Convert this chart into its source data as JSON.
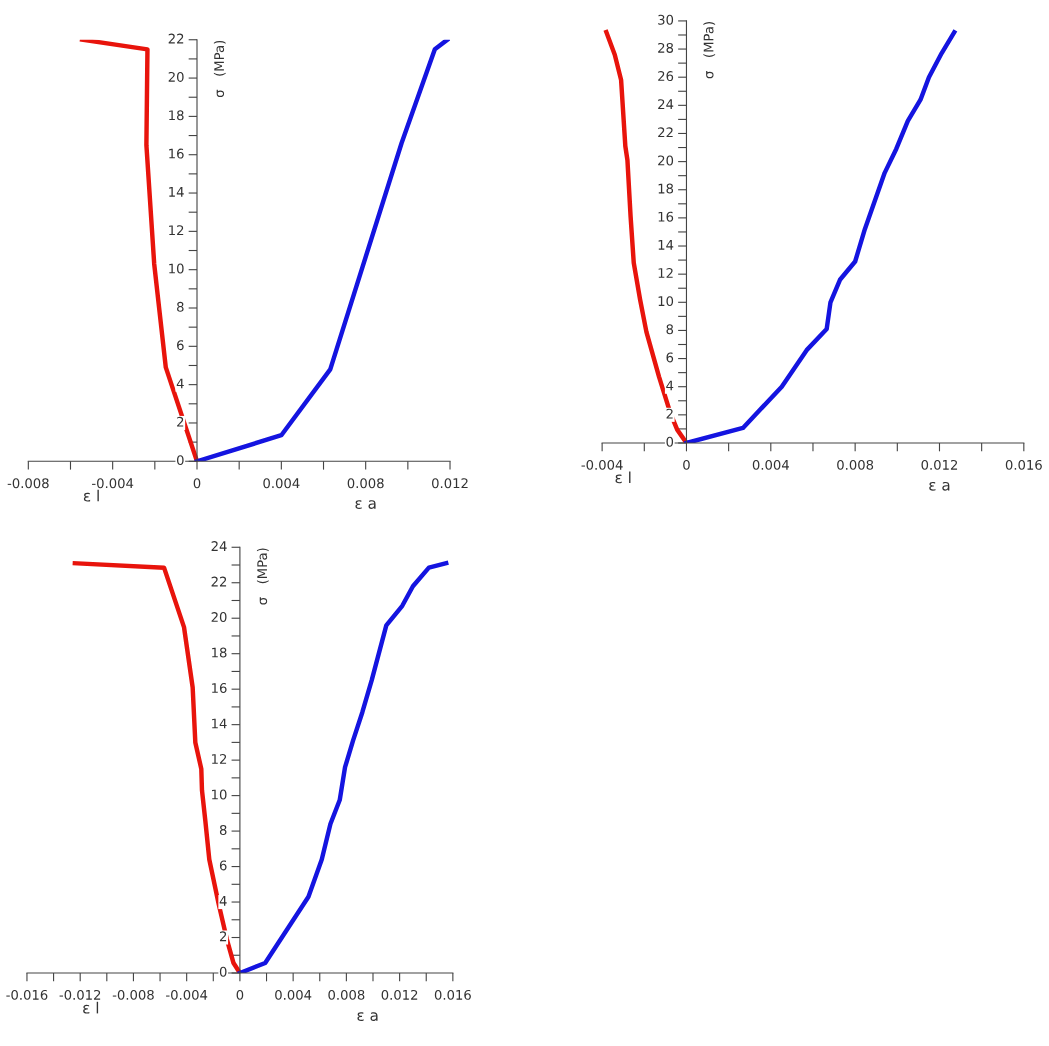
{
  "chart_data": [
    {
      "type": "line",
      "xlabel": "ε a",
      "ylabel": "σ   (MPa)",
      "annotations": [
        "ε l"
      ],
      "xlim": [
        -0.008,
        0.012
      ],
      "ylim": [
        0,
        22
      ],
      "xticks": [
        -0.008,
        {
          "value": -0.006,
          "label": null
        },
        -0.004,
        {
          "value": -0.002,
          "label": null
        },
        0,
        {
          "value": 0.002,
          "label": null
        },
        0.004,
        {
          "value": 0.006,
          "label": null
        },
        0.008,
        {
          "value": 0.01,
          "label": null
        },
        0.012
      ],
      "yticks": [
        0,
        {
          "value": 1,
          "label": null
        },
        2,
        {
          "value": 3,
          "label": null
        },
        4,
        {
          "value": 5,
          "label": null
        },
        6,
        {
          "value": 7,
          "label": null
        },
        8,
        {
          "value": 9,
          "label": null
        },
        10,
        {
          "value": 11,
          "label": null
        },
        12,
        {
          "value": 13,
          "label": null
        },
        14,
        {
          "value": 15,
          "label": null
        },
        16,
        {
          "value": 17,
          "label": null
        },
        18,
        {
          "value": 19,
          "label": null
        },
        20,
        {
          "value": 21,
          "label": null
        },
        22
      ],
      "grid": false,
      "legend": false,
      "series": [
        {
          "color": "#e8140c",
          "x": [
            0,
            -0.00148,
            -0.00203,
            -0.0024,
            -0.00235,
            -0.00545
          ],
          "values": [
            0,
            4.9,
            10.3,
            16.5,
            21.5,
            22
          ]
        },
        {
          "color": "#1414e0",
          "x": [
            0,
            0.004,
            0.00632,
            0.0097,
            0.01128,
            0.01187
          ],
          "values": [
            0,
            1.36,
            4.8,
            16.6,
            21.5,
            22
          ]
        }
      ]
    },
    {
      "type": "line",
      "xlabel": "ε a",
      "ylabel": "σ   (MPa)",
      "annotations": [
        "ε l"
      ],
      "xlim": [
        -0.004,
        0.016
      ],
      "ylim": [
        0,
        30
      ],
      "xticks": [
        -0.004,
        {
          "value": -0.002,
          "label": null
        },
        0,
        {
          "value": 0.002,
          "label": null
        },
        0.004,
        {
          "value": 0.006,
          "label": null
        },
        0.008,
        {
          "value": 0.01,
          "label": null
        },
        0.012,
        {
          "value": 0.014,
          "label": null
        },
        0.016
      ],
      "yticks": [
        0,
        {
          "value": 1,
          "label": null
        },
        2,
        {
          "value": 3,
          "label": null
        },
        4,
        {
          "value": 5,
          "label": null
        },
        6,
        {
          "value": 7,
          "label": null
        },
        8,
        {
          "value": 9,
          "label": null
        },
        10,
        {
          "value": 11,
          "label": null
        },
        12,
        {
          "value": 13,
          "label": null
        },
        14,
        {
          "value": 15,
          "label": null
        },
        16,
        {
          "value": 17,
          "label": null
        },
        18,
        {
          "value": 19,
          "label": null
        },
        20,
        {
          "value": 21,
          "label": null
        },
        22,
        {
          "value": 23,
          "label": null
        },
        24,
        {
          "value": 25,
          "label": null
        },
        26,
        {
          "value": 27,
          "label": null
        },
        28,
        {
          "value": 29,
          "label": null
        },
        30
      ],
      "grid": false,
      "legend": false,
      "series": [
        {
          "color": "#e8140c",
          "x": [
            0,
            -0.00044,
            -0.00076,
            -0.0013,
            -0.0019,
            -0.0022,
            -0.0025,
            -0.00265,
            -0.0028,
            -0.0029,
            -0.0031,
            -0.0034,
            -0.0038
          ],
          "values": [
            0,
            0.95,
            2.1,
            4.7,
            7.9,
            10.2,
            12.8,
            16.1,
            20.1,
            21.1,
            25.8,
            27.6,
            29.2
          ]
        },
        {
          "color": "#1414e0",
          "x": [
            0,
            0.00268,
            0.00452,
            0.0057,
            0.00665,
            0.00683,
            0.00728,
            0.008,
            0.00846,
            0.0094,
            0.00995,
            0.0105,
            0.0111,
            0.0115,
            0.0121,
            0.0127
          ],
          "values": [
            0,
            1.07,
            4.0,
            6.6,
            8.1,
            10.0,
            11.6,
            12.9,
            15.2,
            19.2,
            20.9,
            22.9,
            24.4,
            26.0,
            27.7,
            29.2
          ]
        }
      ]
    },
    {
      "type": "line",
      "xlabel": "ε a",
      "ylabel": "σ   (MPa)",
      "annotations": [
        "ε l"
      ],
      "xlim": [
        -0.016,
        0.016
      ],
      "ylim": [
        0,
        24
      ],
      "xticks": [
        -0.016,
        {
          "value": -0.014,
          "label": null
        },
        -0.012,
        {
          "value": -0.01,
          "label": null
        },
        -0.008,
        {
          "value": -0.006,
          "label": null
        },
        -0.004,
        {
          "value": -0.002,
          "label": null
        },
        0,
        {
          "value": 0.002,
          "label": null
        },
        0.004,
        {
          "value": 0.006,
          "label": null
        },
        0.008,
        {
          "value": 0.01,
          "label": null
        },
        0.012,
        {
          "value": 0.014,
          "label": null
        },
        0.016
      ],
      "yticks": [
        0,
        {
          "value": 1,
          "label": null
        },
        2,
        {
          "value": 3,
          "label": null
        },
        4,
        {
          "value": 5,
          "label": null
        },
        6,
        {
          "value": 7,
          "label": null
        },
        8,
        {
          "value": 9,
          "label": null
        },
        10,
        {
          "value": 11,
          "label": null
        },
        12,
        {
          "value": 13,
          "label": null
        },
        14,
        {
          "value": 15,
          "label": null
        },
        16,
        {
          "value": 17,
          "label": null
        },
        18,
        {
          "value": 19,
          "label": null
        },
        20,
        {
          "value": 21,
          "label": null
        },
        22,
        {
          "value": 23,
          "label": null
        },
        24
      ],
      "grid": false,
      "legend": false,
      "series": [
        {
          "color": "#e8140c",
          "x": [
            0,
            -0.00048,
            -0.00098,
            -0.0016,
            -0.0023,
            -0.0026,
            -0.00285,
            -0.0029,
            -0.00335,
            -0.00355,
            -0.0042,
            -0.0057,
            -0.0124
          ],
          "values": [
            0,
            0.56,
            1.9,
            3.9,
            6.4,
            8.6,
            10.3,
            11.5,
            13.0,
            16.1,
            19.5,
            22.85,
            23.1
          ]
        },
        {
          "color": "#1414e0",
          "x": [
            0,
            0.0019,
            0.00515,
            0.00615,
            0.0068,
            0.0075,
            0.0079,
            0.0085,
            0.0092,
            0.0099,
            0.011,
            0.0122,
            0.013,
            0.0142,
            0.0155
          ],
          "values": [
            0,
            0.56,
            4.3,
            6.4,
            8.4,
            9.75,
            11.6,
            13.1,
            14.7,
            16.5,
            19.6,
            20.7,
            21.8,
            22.85,
            23.1
          ]
        }
      ]
    }
  ]
}
